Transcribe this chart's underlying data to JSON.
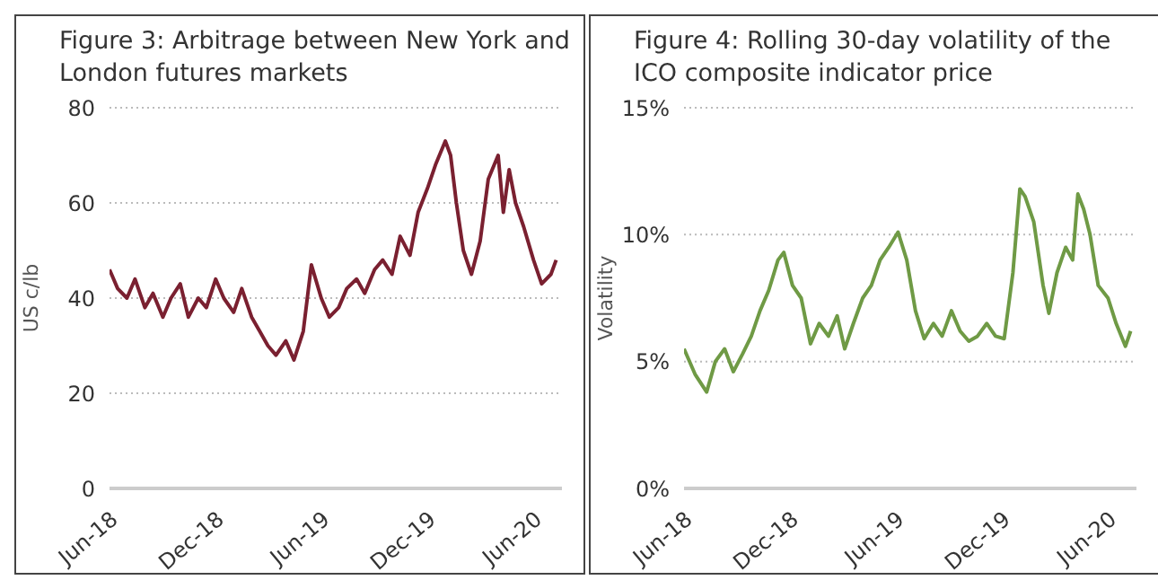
{
  "chart_data": [
    {
      "type": "line",
      "title": "Figure 3:  Arbitrage between New York and London futures markets",
      "ylabel": "US c/lb",
      "xlim": [
        "2018-06-01",
        "2020-07-20"
      ],
      "xticks": [
        {
          "value": "2018-06-01",
          "label": "Jun-18"
        },
        {
          "value": "2018-12-01",
          "label": "Dec-18"
        },
        {
          "value": "2019-06-01",
          "label": "Jun-19"
        },
        {
          "value": "2019-12-01",
          "label": "Dec-19"
        },
        {
          "value": "2020-06-01",
          "label": "Jun-20"
        }
      ],
      "ylim": [
        0,
        80
      ],
      "yticks": [
        0,
        20,
        40,
        60,
        80
      ],
      "grid": "y",
      "series": [
        {
          "color": "#7a2030",
          "x": [
            "2018-06-01",
            "2018-06-15",
            "2018-07-01",
            "2018-07-15",
            "2018-08-01",
            "2018-08-15",
            "2018-09-01",
            "2018-09-15",
            "2018-10-01",
            "2018-10-15",
            "2018-11-01",
            "2018-11-15",
            "2018-12-01",
            "2018-12-15",
            "2019-01-01",
            "2019-01-15",
            "2019-02-01",
            "2019-02-15",
            "2019-03-01",
            "2019-03-15",
            "2019-04-01",
            "2019-04-15",
            "2019-05-01",
            "2019-05-15",
            "2019-06-01",
            "2019-06-15",
            "2019-07-01",
            "2019-07-15",
            "2019-08-01",
            "2019-08-15",
            "2019-09-01",
            "2019-09-15",
            "2019-10-01",
            "2019-10-15",
            "2019-11-01",
            "2019-11-15",
            "2019-12-01",
            "2019-12-15",
            "2020-01-01",
            "2020-01-10",
            "2020-01-20",
            "2020-02-01",
            "2020-02-15",
            "2020-03-01",
            "2020-03-15",
            "2020-04-01",
            "2020-04-10",
            "2020-04-20",
            "2020-05-01",
            "2020-05-15",
            "2020-06-01",
            "2020-06-15",
            "2020-07-01",
            "2020-07-10"
          ],
          "values": [
            46,
            42,
            40,
            44,
            38,
            41,
            36,
            40,
            43,
            36,
            40,
            38,
            44,
            40,
            37,
            42,
            36,
            33,
            30,
            28,
            31,
            27,
            33,
            47,
            40,
            36,
            38,
            42,
            44,
            41,
            46,
            48,
            45,
            53,
            49,
            58,
            63,
            68,
            73,
            70,
            60,
            50,
            45,
            52,
            65,
            70,
            58,
            67,
            60,
            55,
            48,
            43,
            45,
            48
          ]
        }
      ]
    },
    {
      "type": "line",
      "title": "Figure 4:  Rolling 30-day volatility of the ICO  composite indicator price",
      "ylabel": "Volatility",
      "xlim": [
        "2018-06-01",
        "2020-07-20"
      ],
      "xticks": [
        {
          "value": "2018-06-01",
          "label": "Jun-18"
        },
        {
          "value": "2018-12-01",
          "label": "Dec-18"
        },
        {
          "value": "2019-06-01",
          "label": "Jun-19"
        },
        {
          "value": "2019-12-01",
          "label": "Dec-19"
        },
        {
          "value": "2020-06-01",
          "label": "Jun-20"
        }
      ],
      "ylim": [
        0,
        15
      ],
      "yticks": [
        {
          "value": 0,
          "label": "0%"
        },
        {
          "value": 5,
          "label": "5%"
        },
        {
          "value": 10,
          "label": "10%"
        },
        {
          "value": 15,
          "label": "15%"
        }
      ],
      "grid": "y",
      "series": [
        {
          "color": "#6f9a45",
          "x": [
            "2018-06-01",
            "2018-06-20",
            "2018-07-10",
            "2018-07-25",
            "2018-08-10",
            "2018-08-25",
            "2018-09-10",
            "2018-09-25",
            "2018-10-10",
            "2018-10-25",
            "2018-11-10",
            "2018-11-20",
            "2018-12-05",
            "2018-12-20",
            "2019-01-05",
            "2019-01-20",
            "2019-02-05",
            "2019-02-20",
            "2019-03-05",
            "2019-03-20",
            "2019-04-05",
            "2019-04-20",
            "2019-05-05",
            "2019-05-20",
            "2019-06-05",
            "2019-06-20",
            "2019-07-05",
            "2019-07-20",
            "2019-08-05",
            "2019-08-20",
            "2019-09-05",
            "2019-09-20",
            "2019-10-05",
            "2019-10-20",
            "2019-11-05",
            "2019-11-20",
            "2019-12-05",
            "2019-12-20",
            "2020-01-01",
            "2020-01-10",
            "2020-01-25",
            "2020-02-10",
            "2020-02-20",
            "2020-03-05",
            "2020-03-20",
            "2020-04-01",
            "2020-04-10",
            "2020-04-20",
            "2020-05-01",
            "2020-05-15",
            "2020-06-01",
            "2020-06-15",
            "2020-07-01",
            "2020-07-10"
          ],
          "values": [
            5.5,
            4.5,
            3.8,
            5.0,
            5.5,
            4.6,
            5.3,
            6.0,
            7.0,
            7.8,
            9.0,
            9.3,
            8.0,
            7.5,
            5.7,
            6.5,
            6.0,
            6.8,
            5.5,
            6.5,
            7.5,
            8.0,
            9.0,
            9.5,
            10.1,
            9.0,
            7.0,
            5.9,
            6.5,
            6.0,
            7.0,
            6.2,
            5.8,
            6.0,
            6.5,
            6.0,
            5.9,
            8.5,
            11.8,
            11.5,
            10.5,
            8.0,
            6.9,
            8.5,
            9.5,
            9.0,
            11.6,
            11.0,
            10.0,
            8.0,
            7.5,
            6.5,
            5.6,
            6.2
          ]
        }
      ]
    }
  ]
}
